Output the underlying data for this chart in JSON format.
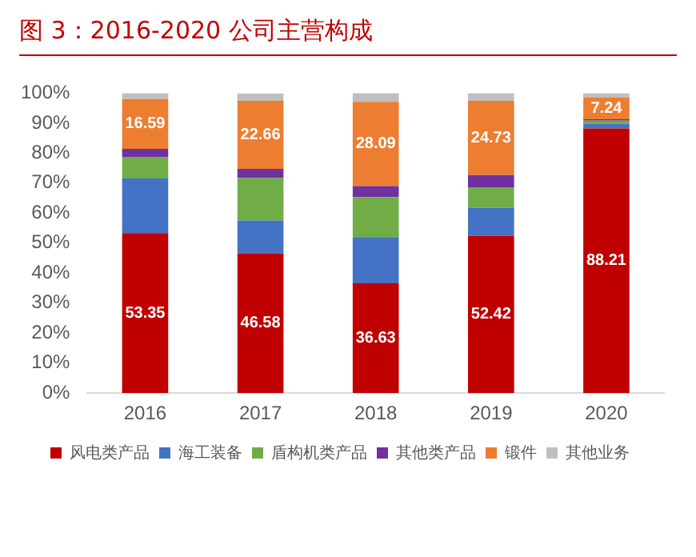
{
  "chart_data": {
    "type": "bar",
    "stacked": true,
    "title": "图 3：2016-2020 公司主营构成",
    "categories": [
      "2016",
      "2017",
      "2018",
      "2019",
      "2020"
    ],
    "series": [
      {
        "name": "风电类产品",
        "color": "#c00000",
        "values": [
          53.35,
          46.58,
          36.63,
          52.42,
          88.21
        ],
        "value_labels": [
          "53.35",
          "46.58",
          "36.63",
          "52.42",
          "88.21"
        ]
      },
      {
        "name": "海工装备",
        "color": "#4472c4",
        "values": [
          18.2,
          11.0,
          15.4,
          9.3,
          1.6
        ]
      },
      {
        "name": "盾构机类产品",
        "color": "#70ad47",
        "values": [
          7.2,
          14.1,
          13.3,
          6.9,
          1.0
        ]
      },
      {
        "name": "其他类产品",
        "color": "#7030a0",
        "values": [
          2.7,
          3.1,
          3.7,
          4.1,
          0.5
        ]
      },
      {
        "name": "锻件",
        "color": "#ed7d31",
        "values": [
          16.59,
          22.66,
          28.09,
          24.73,
          7.24
        ],
        "value_labels": [
          "16.59",
          "22.66",
          "28.09",
          "24.73",
          "7.24"
        ]
      },
      {
        "name": "其他业务",
        "color": "#bfbfbf",
        "values": [
          2.0,
          2.5,
          3.2,
          2.6,
          1.5
        ]
      }
    ],
    "ylim": [
      0,
      100
    ],
    "yticks": [
      {
        "value": 0,
        "label": "0%"
      },
      {
        "value": 10,
        "label": "10%"
      },
      {
        "value": 20,
        "label": "20%"
      },
      {
        "value": 30,
        "label": "30%"
      },
      {
        "value": 40,
        "label": "40%"
      },
      {
        "value": 50,
        "label": "50%"
      },
      {
        "value": 60,
        "label": "60%"
      },
      {
        "value": 70,
        "label": "70%"
      },
      {
        "value": 80,
        "label": "80%"
      },
      {
        "value": 90,
        "label": "90%"
      },
      {
        "value": 100,
        "label": "100%"
      }
    ],
    "grid": false,
    "legend": "bottom"
  }
}
